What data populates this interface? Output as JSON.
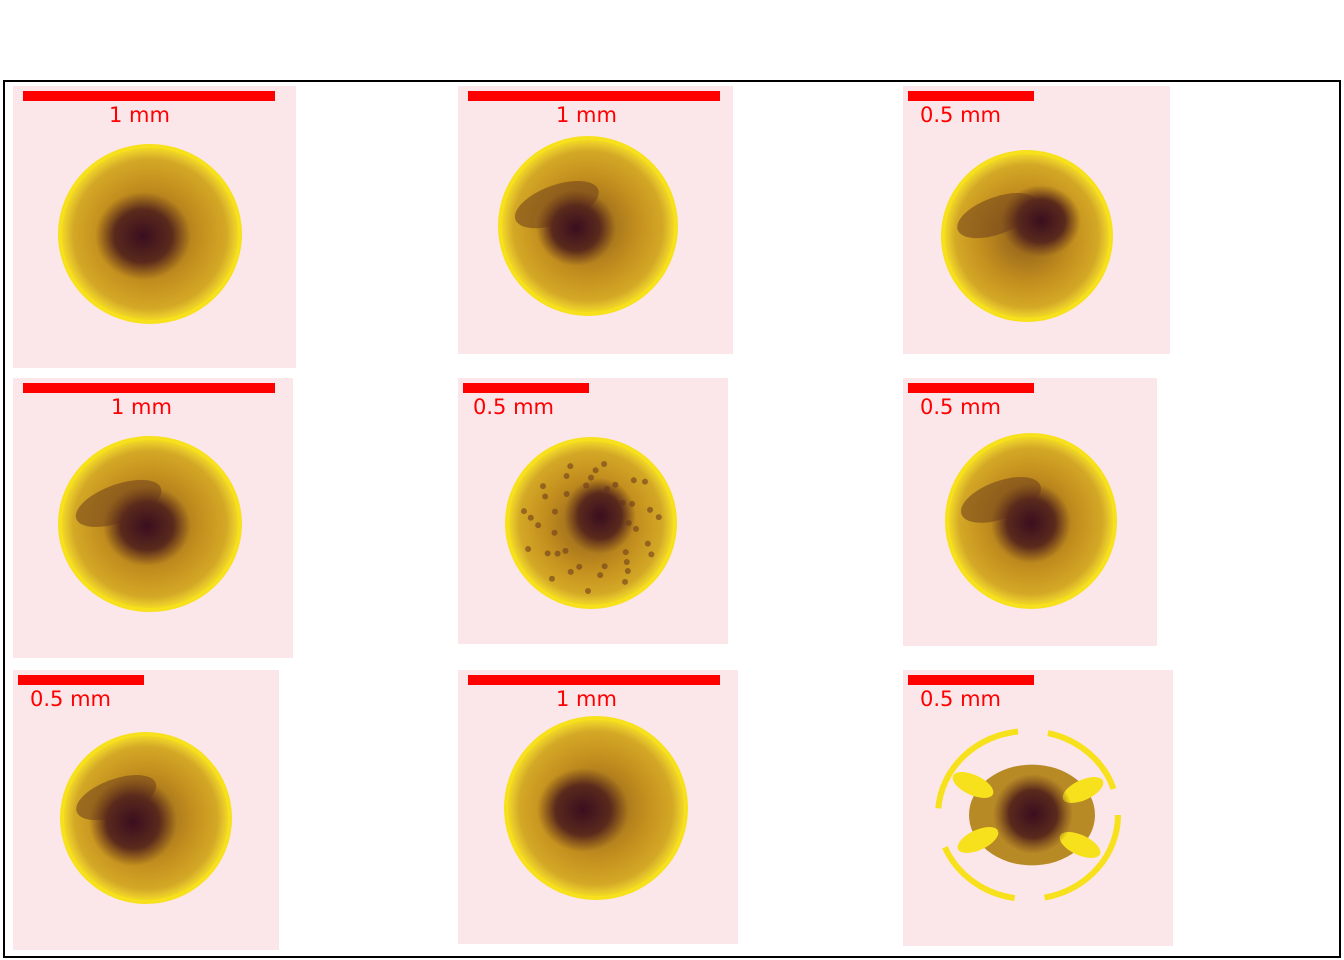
{
  "figure": {
    "colors": {
      "scale": "#ff0000",
      "background": "#fbe7ea",
      "rim": "#f7e01c",
      "body": "#c28e1e",
      "core": "#3a0e1f"
    },
    "panels": [
      {
        "scale_label": "1 mm",
        "scale_mm": 1.0
      },
      {
        "scale_label": "1 mm",
        "scale_mm": 1.0
      },
      {
        "scale_label": "0.5 mm",
        "scale_mm": 0.5
      },
      {
        "scale_label": "1 mm",
        "scale_mm": 1.0
      },
      {
        "scale_label": "0.5 mm",
        "scale_mm": 0.5
      },
      {
        "scale_label": "0.5 mm",
        "scale_mm": 0.5
      },
      {
        "scale_label": "0.5 mm",
        "scale_mm": 0.5
      },
      {
        "scale_label": "1 mm",
        "scale_mm": 1.0
      },
      {
        "scale_label": "0.5 mm",
        "scale_mm": 0.5
      }
    ]
  }
}
